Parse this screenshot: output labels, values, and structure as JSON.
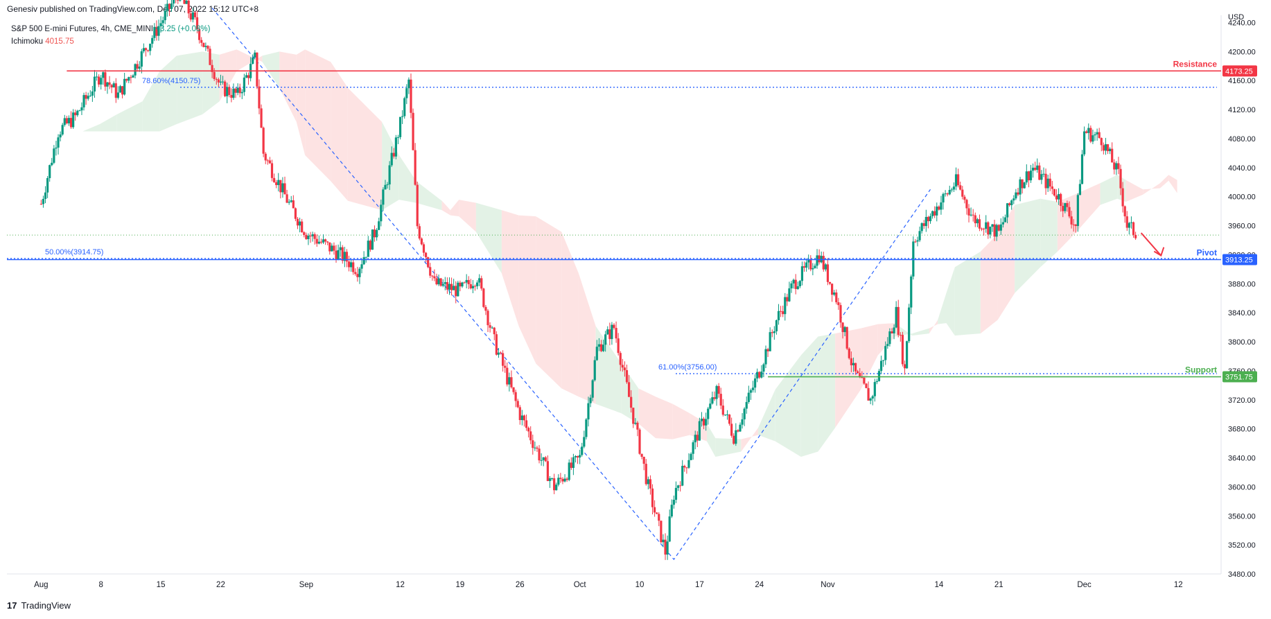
{
  "header": {
    "publisher": "Genesiv published on TradingView.com, Dec 07, 2022 15:12 UTC+8"
  },
  "legend": {
    "symbol": "S&P 500 E-mini Futures, 4h, CME_MINI",
    "change": "+3.25 (+0.08%)",
    "indicator_name": "Ichimoku",
    "indicator_value": "4015.75"
  },
  "footer": {
    "brand": "TradingView",
    "logo_glyph": "17"
  },
  "colors": {
    "up": "#089981",
    "down": "#f23645",
    "resistance": "#f23645",
    "pivot": "#2962ff",
    "support": "#4caf50",
    "cloud_bull": "#e3f2e6",
    "cloud_bear": "#fde3e3",
    "fib": "#2962ff"
  },
  "chart_data": {
    "type": "candlestick",
    "currency": "USD",
    "ylim": [
      3480,
      4250
    ],
    "y_ticks": [
      4240,
      4200,
      4160,
      4120,
      4080,
      4040,
      4000,
      3960,
      3920,
      3880,
      3840,
      3800,
      3760,
      3720,
      3680,
      3640,
      3600,
      3560,
      3520,
      3480
    ],
    "x_ticks": [
      "Aug",
      "8",
      "15",
      "22",
      "Sep",
      "12",
      "19",
      "26",
      "Oct",
      "10",
      "17",
      "24",
      "Nov",
      "14",
      "21",
      "Dec",
      "12"
    ],
    "x_tick_dates": [
      "2022-08-01",
      "2022-08-08",
      "2022-08-15",
      "2022-08-22",
      "2022-09-01",
      "2022-09-12",
      "2022-09-19",
      "2022-09-26",
      "2022-10-03",
      "2022-10-10",
      "2022-10-17",
      "2022-10-24",
      "2022-11-01",
      "2022-11-14",
      "2022-11-21",
      "2022-12-01",
      "2022-12-12"
    ],
    "price_path": [
      [
        "2022-08-01",
        3990
      ],
      [
        "2022-08-03",
        4090
      ],
      [
        "2022-08-05",
        4110
      ],
      [
        "2022-08-08",
        4170
      ],
      [
        "2022-08-10",
        4140
      ],
      [
        "2022-08-12",
        4180
      ],
      [
        "2022-08-15",
        4240
      ],
      [
        "2022-08-17",
        4280
      ],
      [
        "2022-08-19",
        4240
      ],
      [
        "2022-08-22",
        4150
      ],
      [
        "2022-08-24",
        4140
      ],
      [
        "2022-08-26",
        4190
      ],
      [
        "2022-08-27",
        4060
      ],
      [
        "2022-08-30",
        3990
      ],
      [
        "2022-09-01",
        3950
      ],
      [
        "2022-09-05",
        3920
      ],
      [
        "2022-09-07",
        3900
      ],
      [
        "2022-09-09",
        3950
      ],
      [
        "2022-09-12",
        4100
      ],
      [
        "2022-09-13",
        4160
      ],
      [
        "2022-09-14",
        3960
      ],
      [
        "2022-09-16",
        3880
      ],
      [
        "2022-09-19",
        3870
      ],
      [
        "2022-09-21",
        3890
      ],
      [
        "2022-09-23",
        3800
      ],
      [
        "2022-09-26",
        3700
      ],
      [
        "2022-09-28",
        3650
      ],
      [
        "2022-09-30",
        3600
      ],
      [
        "2022-10-03",
        3640
      ],
      [
        "2022-10-05",
        3790
      ],
      [
        "2022-10-07",
        3820
      ],
      [
        "2022-10-09",
        3710
      ],
      [
        "2022-10-11",
        3600
      ],
      [
        "2022-10-13",
        3510
      ],
      [
        "2022-10-14",
        3590
      ],
      [
        "2022-10-17",
        3680
      ],
      [
        "2022-10-19",
        3730
      ],
      [
        "2022-10-21",
        3670
      ],
      [
        "2022-10-24",
        3760
      ],
      [
        "2022-10-26",
        3830
      ],
      [
        "2022-10-28",
        3880
      ],
      [
        "2022-10-31",
        3920
      ],
      [
        "2022-11-02",
        3860
      ],
      [
        "2022-11-04",
        3760
      ],
      [
        "2022-11-06",
        3720
      ],
      [
        "2022-11-08",
        3800
      ],
      [
        "2022-11-09",
        3840
      ],
      [
        "2022-11-10",
        3760
      ],
      [
        "2022-11-11",
        3940
      ],
      [
        "2022-11-14",
        3990
      ],
      [
        "2022-11-16",
        4020
      ],
      [
        "2022-11-18",
        3970
      ],
      [
        "2022-11-21",
        3950
      ],
      [
        "2022-11-23",
        4010
      ],
      [
        "2022-11-25",
        4040
      ],
      [
        "2022-11-28",
        4000
      ],
      [
        "2022-11-30",
        3960
      ],
      [
        "2022-12-01",
        4090
      ],
      [
        "2022-12-03",
        4080
      ],
      [
        "2022-12-05",
        4030
      ],
      [
        "2022-12-06",
        3960
      ],
      [
        "2022-12-07",
        3950
      ]
    ],
    "levels": [
      {
        "name": "Resistance",
        "value": 4173.25,
        "label": "4173.25",
        "color": "#f23645"
      },
      {
        "name": "Pivot",
        "value": 3913.25,
        "label": "3913.25",
        "color": "#2962ff"
      },
      {
        "name": "Support",
        "value": 3751.75,
        "label": "3751.75",
        "color": "#4caf50"
      }
    ],
    "fib_levels": [
      {
        "label": "78.60%(4150.75)",
        "value": 4150.75
      },
      {
        "label": "50.00%(3914.75)",
        "value": 3914.75
      },
      {
        "label": "61.00%(3756.00)",
        "value": 3756.0
      }
    ],
    "current_price_line": 3947,
    "projection": {
      "from": [
        "2022-12-07",
        3950
      ],
      "to": [
        "2022-12-09",
        3915
      ]
    }
  }
}
